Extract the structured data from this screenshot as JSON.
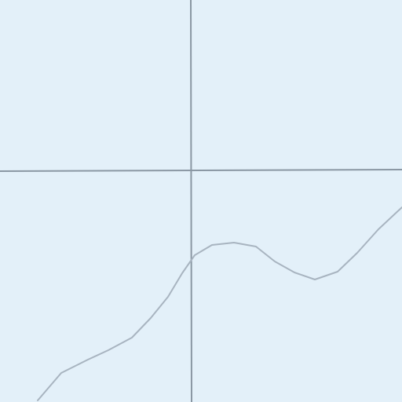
{
  "map": {
    "background_color": "#e3f0f9",
    "graticule_color": "#8a97a3",
    "boundary_color": "#a8b4c0"
  }
}
